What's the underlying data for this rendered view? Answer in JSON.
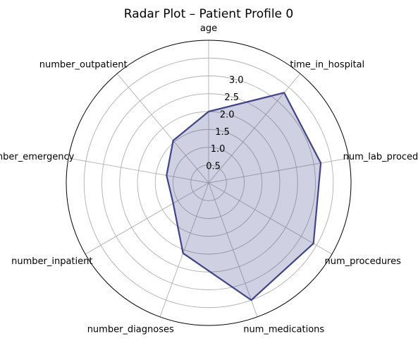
{
  "chart_data": {
    "type": "radar",
    "title": "Radar Plot – Patient Profile 0",
    "categories": [
      "age",
      "time_in_hospital",
      "num_lab_procedures",
      "num_procedures",
      "num_medications",
      "number_diagnoses",
      "number_inpatient",
      "number_emergency",
      "number_outpatient"
    ],
    "values": [
      2.0,
      3.3,
      3.2,
      3.4,
      3.5,
      2.1,
      1.15,
      1.2,
      1.55
    ],
    "rlim": [
      0,
      4
    ],
    "rticks": [
      0.5,
      1.0,
      1.5,
      2.0,
      2.5,
      3.0
    ],
    "rtick_labels": [
      "0.5",
      "1.0",
      "1.5",
      "2.0",
      "2.5",
      "3.0"
    ],
    "grid": true,
    "colors": {
      "line": "#414487",
      "fill": "#414487",
      "grid": "#b0b0b0",
      "spine": "#000000"
    }
  }
}
